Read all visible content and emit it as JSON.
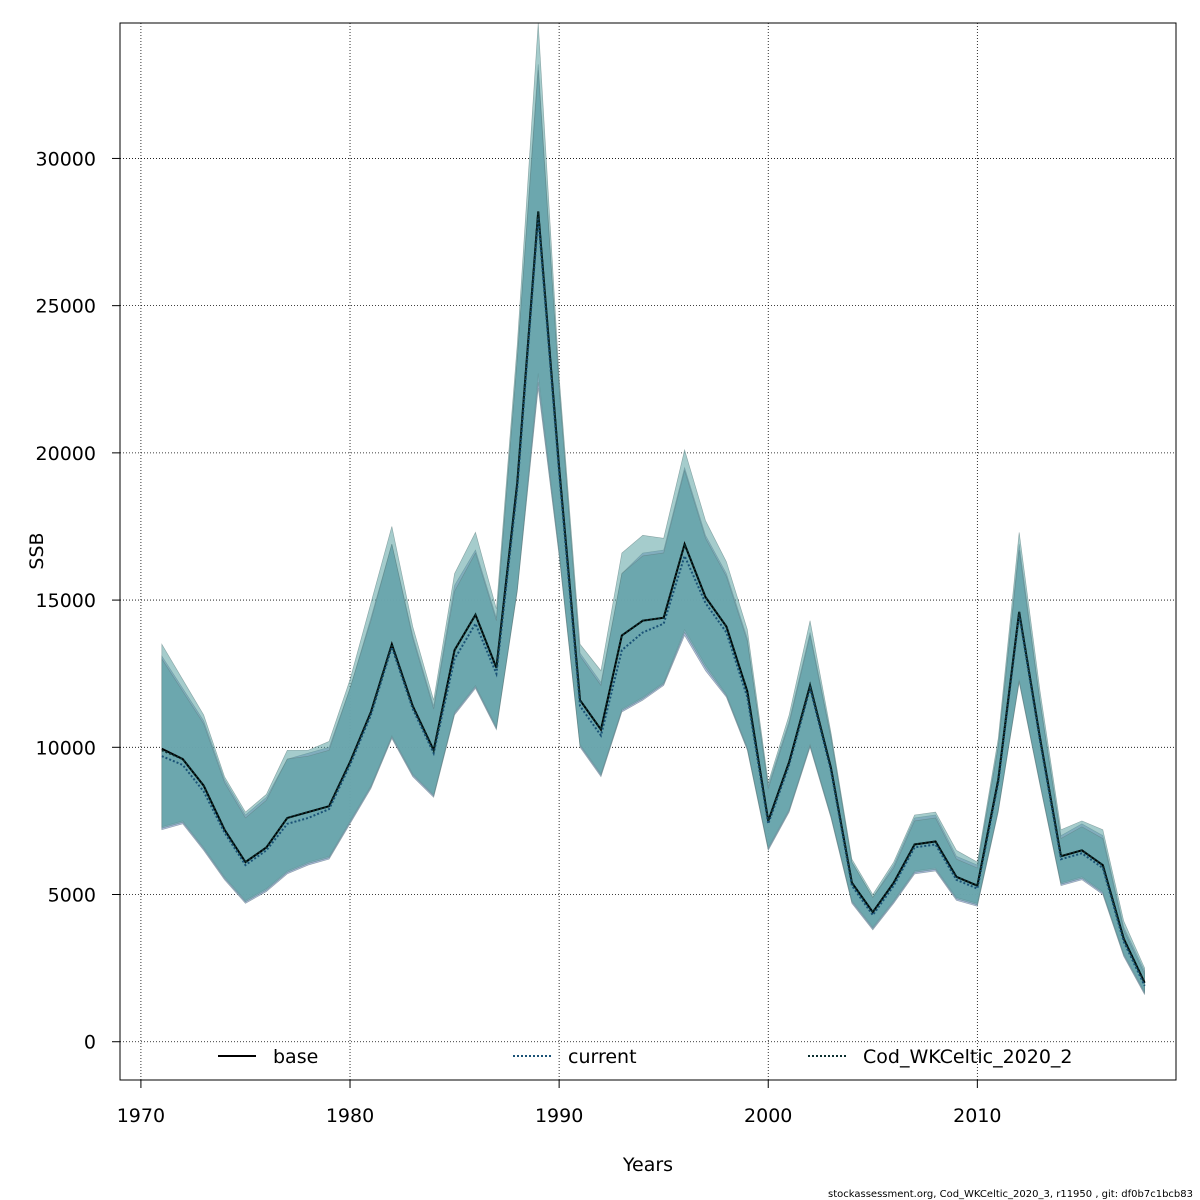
{
  "chart_data": {
    "type": "line",
    "xlabel": "Years",
    "ylabel": "SSB",
    "xlim": [
      1969,
      2019.5
    ],
    "ylim": [
      -1300,
      34600
    ],
    "xticks": [
      1970,
      1980,
      1990,
      2000,
      2010
    ],
    "yticks": [
      0,
      5000,
      10000,
      15000,
      20000,
      25000,
      30000
    ],
    "grid": true,
    "legend_position": "bottom",
    "footer": "stockassessment.org, Cod_WKCeltic_2020_3, r11950 , git: df0b7c1bcb83",
    "years": [
      1971,
      1972,
      1973,
      1974,
      1975,
      1976,
      1977,
      1978,
      1979,
      1980,
      1981,
      1982,
      1983,
      1984,
      1985,
      1986,
      1987,
      1988,
      1989,
      1990,
      1991,
      1992,
      1993,
      1994,
      1995,
      1996,
      1997,
      1998,
      1999,
      2000,
      2001,
      2002,
      2003,
      2004,
      2005,
      2006,
      2007,
      2008,
      2009,
      2010,
      2011,
      2012,
      2013,
      2014,
      2015,
      2016,
      2017,
      2018
    ],
    "series": [
      {
        "name": "base",
        "style": "solid",
        "color": "#000000",
        "band_color": "#a6b3d9",
        "values": [
          9950,
          9600,
          8700,
          7200,
          6100,
          6600,
          7600,
          7800,
          8000,
          9500,
          11200,
          13500,
          11400,
          9900,
          13300,
          14500,
          12700,
          19000,
          28200,
          19500,
          11600,
          10600,
          13800,
          14300,
          14400,
          16900,
          15100,
          14100,
          11900,
          7500,
          9500,
          12100,
          9300,
          5400,
          4400,
          5400,
          6700,
          6800,
          5600,
          5300,
          8900,
          14600,
          10300,
          6300,
          6500,
          6000,
          3500,
          2000
        ],
        "lower": [
          7200,
          7400,
          6500,
          5500,
          4700,
          5100,
          5700,
          6000,
          6200,
          7400,
          8600,
          10300,
          9000,
          8300,
          11100,
          12000,
          10600,
          15300,
          22200,
          16500,
          10000,
          9000,
          11200,
          11600,
          12100,
          13800,
          12600,
          11700,
          9900,
          6500,
          7800,
          10000,
          7600,
          4700,
          3800,
          4700,
          5700,
          5800,
          4800,
          4600,
          7800,
          12200,
          8700,
          5300,
          5500,
          5000,
          2900,
          1600
        ],
        "upper": [
          13100,
          12000,
          10900,
          8900,
          7700,
          8300,
          9600,
          9800,
          10000,
          12000,
          14400,
          16900,
          13800,
          11400,
          15500,
          16700,
          14400,
          23300,
          33200,
          22300,
          13200,
          12200,
          15900,
          16600,
          16700,
          19500,
          17200,
          15900,
          13700,
          8700,
          10900,
          13900,
          10400,
          6100,
          4900,
          6000,
          7600,
          7700,
          6300,
          6000,
          10100,
          16900,
          11600,
          7000,
          7400,
          7000,
          3900,
          2400
        ]
      },
      {
        "name": "current",
        "style": "dotted",
        "color": "#1a5276",
        "band_color": "#5ba3a3",
        "values": [
          9700,
          9400,
          8500,
          7100,
          6000,
          6500,
          7400,
          7600,
          7900,
          9400,
          11100,
          13400,
          11300,
          9800,
          13000,
          14200,
          12500,
          18800,
          28000,
          19300,
          11400,
          10400,
          13300,
          13900,
          14200,
          16500,
          14900,
          13900,
          11700,
          7400,
          9400,
          12000,
          9200,
          5300,
          4300,
          5300,
          6600,
          6700,
          5500,
          5200,
          8800,
          14500,
          10200,
          6200,
          6400,
          5900,
          3400,
          1900
        ],
        "lower": [
          7300,
          7500,
          6600,
          5600,
          4800,
          5200,
          5800,
          6100,
          6300,
          7500,
          8700,
          10400,
          9100,
          8400,
          11200,
          12100,
          10700,
          15400,
          22700,
          16700,
          10100,
          9100,
          11300,
          11700,
          12200,
          14000,
          12800,
          11800,
          10000,
          6600,
          7900,
          10100,
          7700,
          4800,
          3900,
          4800,
          5800,
          5900,
          4900,
          4700,
          7900,
          12300,
          8800,
          5400,
          5600,
          5100,
          3000,
          1700
        ],
        "upper": [
          13500,
          12300,
          11100,
          9000,
          7800,
          8400,
          9900,
          9900,
          10200,
          12300,
          14900,
          17500,
          14100,
          11600,
          15900,
          17300,
          14700,
          23700,
          34600,
          22600,
          13500,
          12600,
          16600,
          17200,
          17100,
          20100,
          17700,
          16300,
          14000,
          8800,
          11100,
          14300,
          10500,
          6200,
          5000,
          6100,
          7700,
          7800,
          6500,
          6100,
          10300,
          17300,
          11900,
          7200,
          7500,
          7200,
          4100,
          2500
        ]
      },
      {
        "name": "Cod_WKCeltic_2020_2",
        "style": "dotted",
        "color": "#0b2e2e",
        "band_color": "#5ba3a3",
        "values": [
          9900,
          9600,
          8700,
          7200,
          6100,
          6600,
          7600,
          7800,
          8000,
          9500,
          11200,
          13500,
          11400,
          9900,
          13300,
          14500,
          12700,
          19000,
          28200,
          19500,
          11600,
          10600,
          13800,
          14300,
          14400,
          16900,
          15100,
          14100,
          11900,
          7500,
          9500,
          12100,
          9300,
          5400,
          4400,
          5400,
          6700,
          6800,
          5600,
          5300,
          8900,
          14600,
          10300,
          6300,
          6500,
          6000,
          3500,
          2000
        ],
        "lower": [
          7250,
          7450,
          6550,
          5550,
          4750,
          5150,
          5750,
          6050,
          6250,
          7450,
          8650,
          10350,
          9050,
          8350,
          11150,
          12050,
          10650,
          15350,
          22400,
          16600,
          10050,
          9050,
          11250,
          11650,
          12150,
          13900,
          12700,
          11750,
          9950,
          6550,
          7850,
          10050,
          7650,
          4750,
          3850,
          4750,
          5750,
          5850,
          4850,
          4650,
          7850,
          12250,
          8750,
          5350,
          5550,
          5050,
          2950,
          1650
        ],
        "upper": [
          13000,
          11900,
          10800,
          8800,
          7600,
          8200,
          9600,
          9700,
          9900,
          12000,
          14300,
          16900,
          13700,
          11300,
          15300,
          16600,
          14300,
          23200,
          33000,
          22200,
          13100,
          12100,
          15900,
          16500,
          16600,
          19400,
          17100,
          15800,
          13600,
          8600,
          10800,
          13800,
          10300,
          6100,
          4900,
          5900,
          7500,
          7600,
          6200,
          5900,
          10000,
          16700,
          11500,
          6900,
          7300,
          6900,
          3800,
          2300
        ]
      }
    ]
  }
}
